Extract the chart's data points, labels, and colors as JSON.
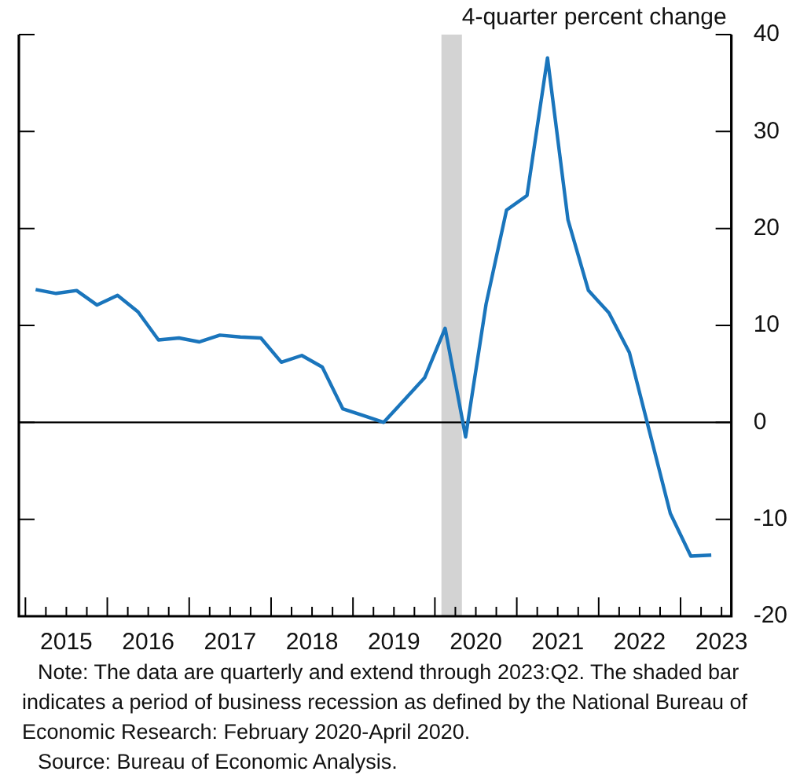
{
  "chart_data": {
    "type": "line",
    "ylabel": "4-quarter percent change",
    "x": [
      2015.125,
      2015.375,
      2015.625,
      2015.875,
      2016.125,
      2016.375,
      2016.625,
      2016.875,
      2017.125,
      2017.375,
      2017.625,
      2017.875,
      2018.125,
      2018.375,
      2018.625,
      2018.875,
      2019.125,
      2019.375,
      2019.625,
      2019.875,
      2020.125,
      2020.375,
      2020.625,
      2020.875,
      2021.125,
      2021.375,
      2021.625,
      2021.875,
      2022.125,
      2022.375,
      2022.625,
      2022.875,
      2023.125,
      2023.375
    ],
    "series": [
      {
        "color": "#1a75bc",
        "values": [
          13.7,
          13.3,
          13.6,
          12.1,
          13.1,
          11.4,
          8.5,
          8.7,
          8.3,
          9.0,
          8.8,
          8.7,
          6.2,
          6.9,
          5.7,
          1.4,
          0.7,
          0.0,
          2.3,
          4.6,
          9.7,
          -1.5,
          12.2,
          21.9,
          23.4,
          37.6,
          20.9,
          13.6,
          11.3,
          7.2,
          -1.1,
          -9.4,
          -13.8,
          -13.7
        ]
      }
    ],
    "xlim": [
      2014.92,
      2023.62
    ],
    "xticks": [
      {
        "value": 2015,
        "label": null
      },
      {
        "value": 2015.25,
        "label": null
      },
      {
        "value": 2015.5,
        "label": "2015"
      },
      {
        "value": 2015.75,
        "label": null
      },
      {
        "value": 2016,
        "label": null
      },
      {
        "value": 2016.25,
        "label": null
      },
      {
        "value": 2016.5,
        "label": "2016"
      },
      {
        "value": 2016.75,
        "label": null
      },
      {
        "value": 2017,
        "label": null
      },
      {
        "value": 2017.25,
        "label": null
      },
      {
        "value": 2017.5,
        "label": "2017"
      },
      {
        "value": 2017.75,
        "label": null
      },
      {
        "value": 2018,
        "label": null
      },
      {
        "value": 2018.25,
        "label": null
      },
      {
        "value": 2018.5,
        "label": "2018"
      },
      {
        "value": 2018.75,
        "label": null
      },
      {
        "value": 2019,
        "label": null
      },
      {
        "value": 2019.25,
        "label": null
      },
      {
        "value": 2019.5,
        "label": "2019"
      },
      {
        "value": 2019.75,
        "label": null
      },
      {
        "value": 2020,
        "label": null
      },
      {
        "value": 2020.25,
        "label": null
      },
      {
        "value": 2020.5,
        "label": "2020"
      },
      {
        "value": 2020.75,
        "label": null
      },
      {
        "value": 2021,
        "label": null
      },
      {
        "value": 2021.25,
        "label": null
      },
      {
        "value": 2021.5,
        "label": "2021"
      },
      {
        "value": 2021.75,
        "label": null
      },
      {
        "value": 2022,
        "label": null
      },
      {
        "value": 2022.25,
        "label": null
      },
      {
        "value": 2022.5,
        "label": "2022"
      },
      {
        "value": 2022.75,
        "label": null
      },
      {
        "value": 2023,
        "label": null
      },
      {
        "value": 2023.25,
        "label": null
      },
      {
        "value": 2023.5,
        "label": "2023"
      }
    ],
    "ylim": [
      -20,
      40
    ],
    "yticks": [
      -20,
      -10,
      0,
      10,
      20,
      30,
      40
    ],
    "ref_lines": [
      {
        "axis": "y",
        "value": 0,
        "color": "#000000"
      }
    ],
    "bands": [
      {
        "axis": "x",
        "from": 2020.08,
        "to": 2020.33,
        "color": "#d3d3d3"
      }
    ],
    "grid": false,
    "legend": false,
    "marker": "none",
    "line_style": "solid",
    "annotations": [
      "Note: The data are quarterly and extend through 2023:Q2. The shaded bar indicates a period of business recession as defined by the National Bureau of Economic Research: February 2020-April 2020.",
      "Source: Bureau of Economic Analysis."
    ]
  }
}
